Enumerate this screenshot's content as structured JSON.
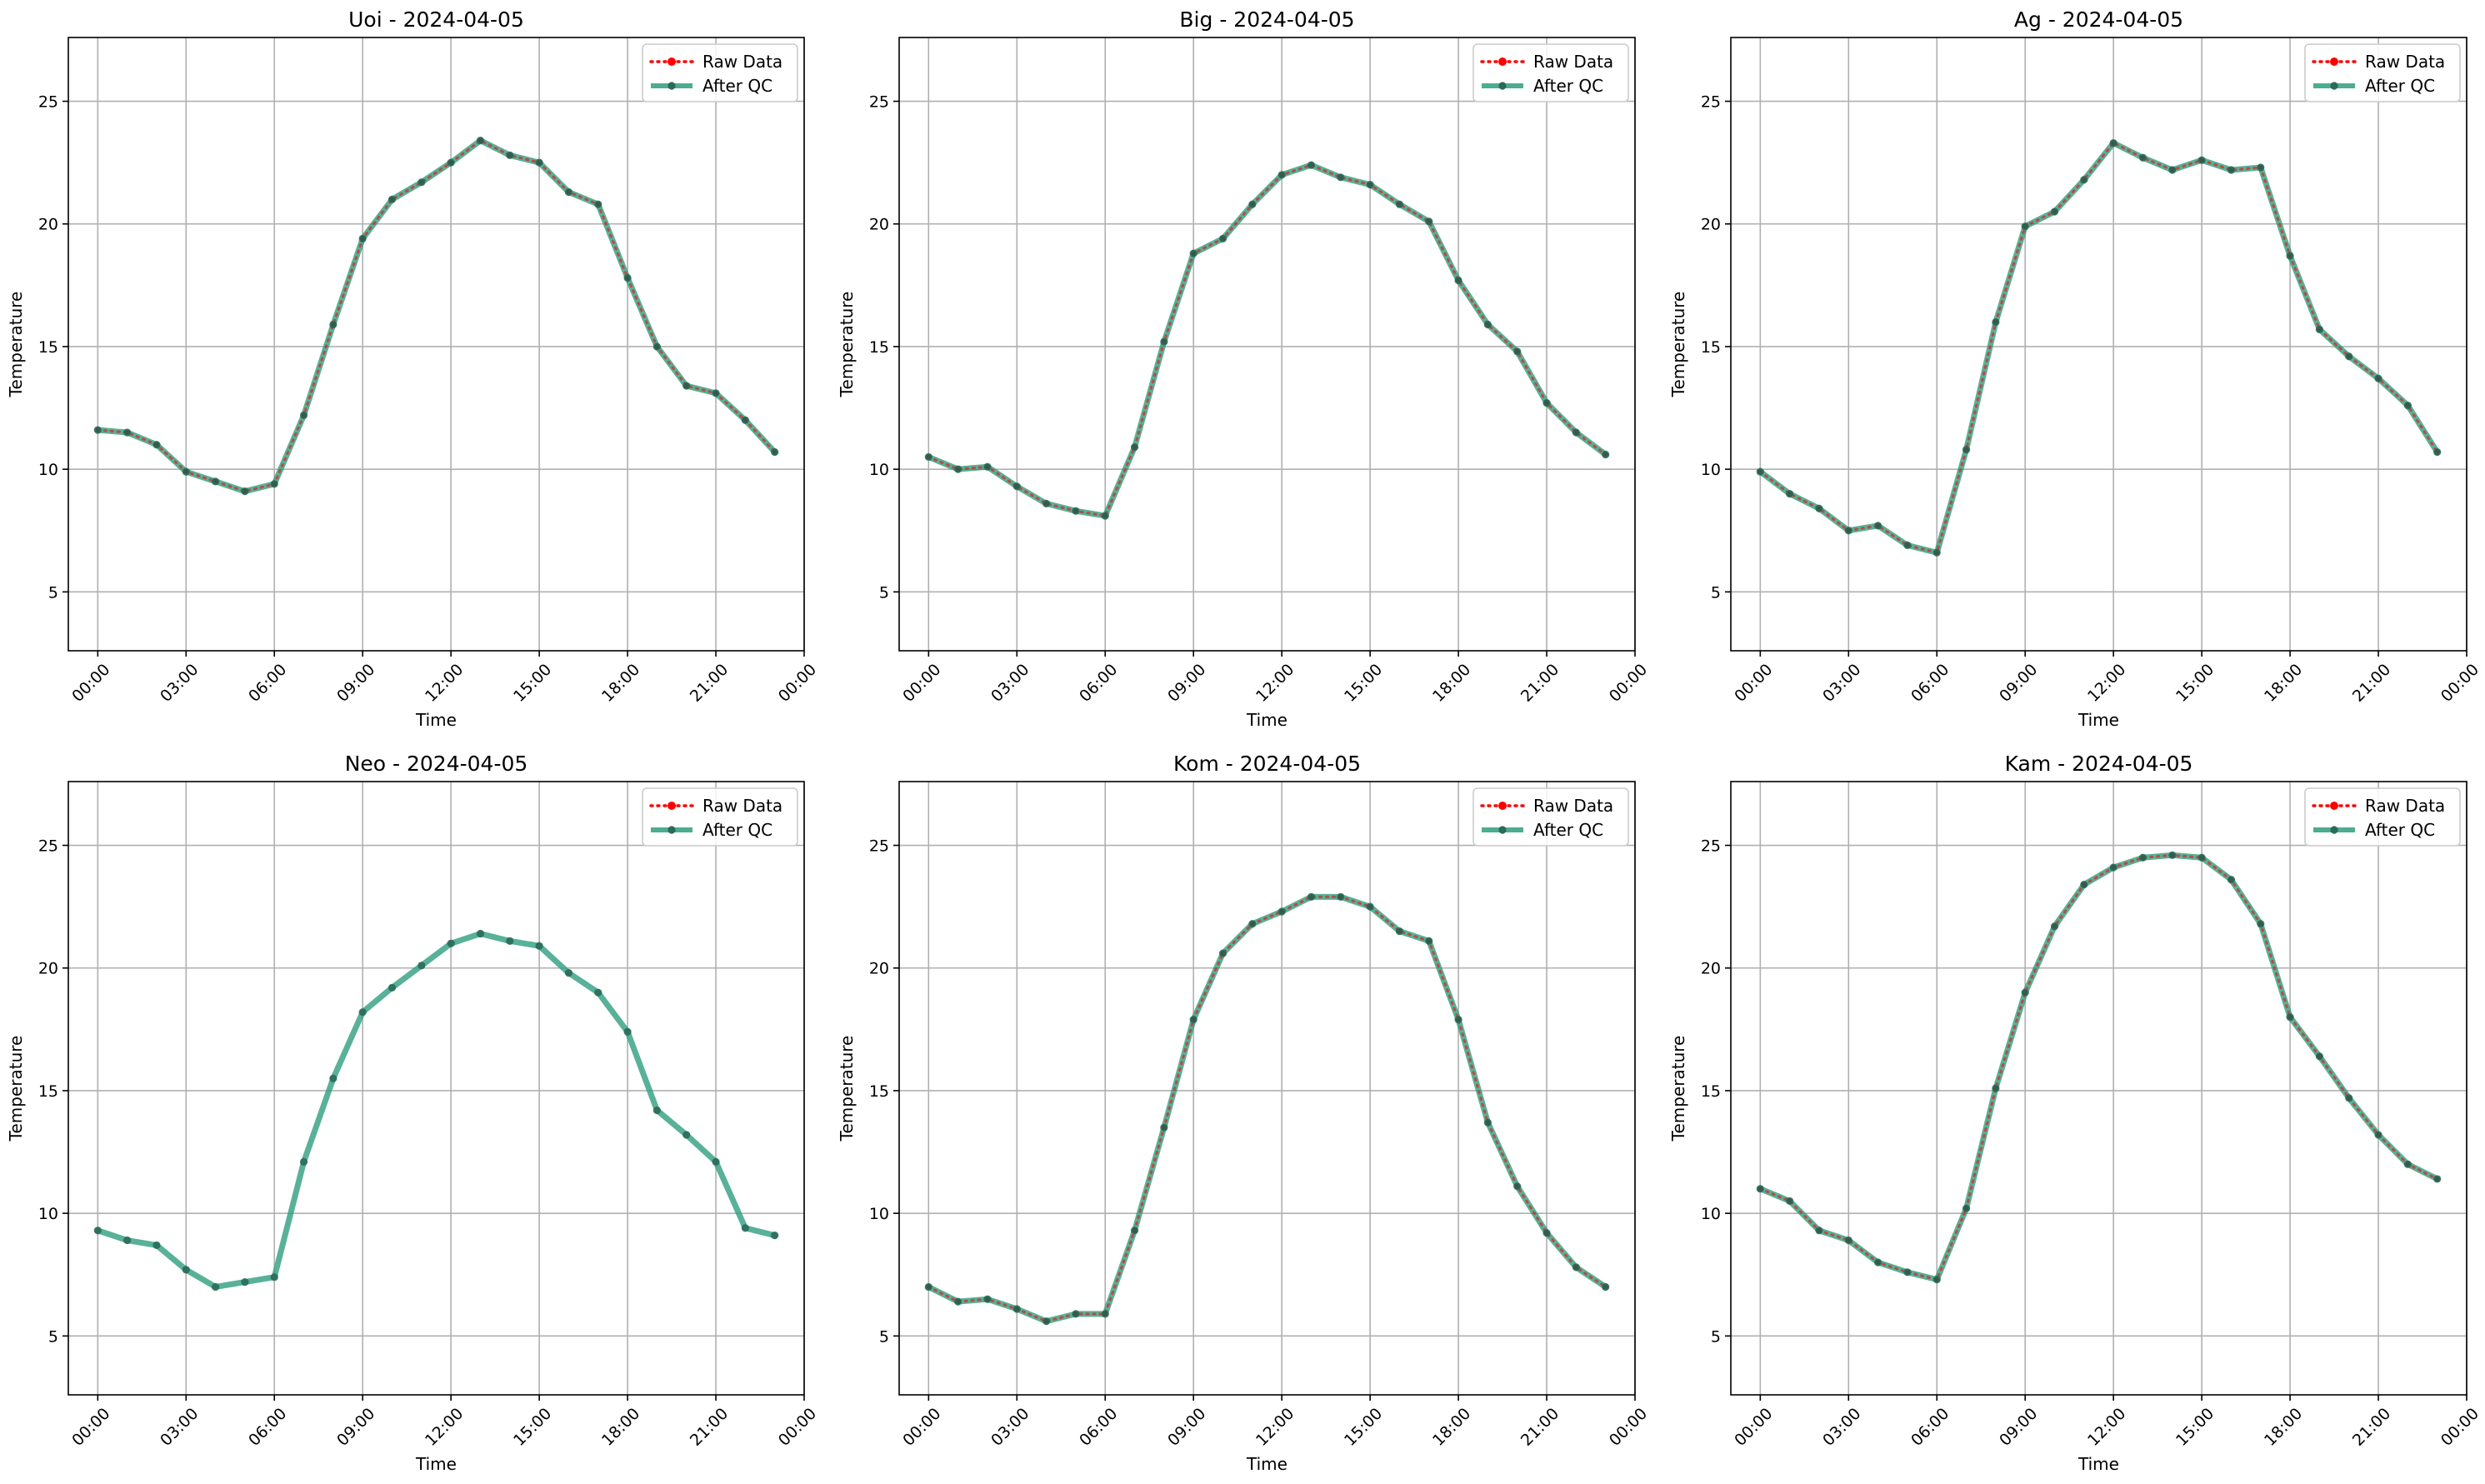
{
  "figure": {
    "legend_position": "upper-right",
    "grid": true,
    "colors": {
      "raw": "#ff0000",
      "qc": "#2e9e7e",
      "qc_marker": "#2a6a58"
    }
  },
  "chart_data": [
    {
      "type": "line",
      "title": "Uoi - 2024-04-05",
      "xlabel": "Time",
      "ylabel": "Temperature",
      "ylim": [
        2.6,
        27.6
      ],
      "yticks": [
        "5",
        "10",
        "15",
        "20",
        "25"
      ],
      "xlim_hours": [
        -1.0,
        24.0
      ],
      "xticks": [
        "00:00",
        "03:00",
        "06:00",
        "09:00",
        "12:00",
        "15:00",
        "18:00",
        "21:00",
        "00:00"
      ],
      "x_hours": [
        0,
        1,
        2,
        3,
        4,
        5,
        6,
        7,
        8,
        9,
        10,
        11,
        12,
        13,
        14,
        15,
        16,
        17,
        18,
        19,
        20,
        21,
        22,
        23
      ],
      "series": [
        {
          "name": "Raw Data",
          "values": [
            11.6,
            11.5,
            11.0,
            9.9,
            9.5,
            9.1,
            9.4,
            12.2,
            15.9,
            19.4,
            21.0,
            21.7,
            22.5,
            23.4,
            22.8,
            22.5,
            21.3,
            20.8,
            17.8,
            15.0,
            13.4,
            13.1,
            12.0,
            10.7
          ]
        },
        {
          "name": "After QC",
          "values": [
            11.6,
            11.5,
            11.0,
            9.9,
            9.5,
            9.1,
            9.4,
            12.2,
            15.9,
            19.4,
            21.0,
            21.7,
            22.5,
            23.4,
            22.8,
            22.5,
            21.3,
            20.8,
            17.8,
            15.0,
            13.4,
            13.1,
            12.0,
            10.7
          ]
        }
      ]
    },
    {
      "type": "line",
      "title": "Big - 2024-04-05",
      "xlabel": "Time",
      "ylabel": "Temperature",
      "ylim": [
        2.6,
        27.6
      ],
      "yticks": [
        "5",
        "10",
        "15",
        "20",
        "25"
      ],
      "xlim_hours": [
        -1.0,
        24.0
      ],
      "xticks": [
        "00:00",
        "03:00",
        "06:00",
        "09:00",
        "12:00",
        "15:00",
        "18:00",
        "21:00",
        "00:00"
      ],
      "x_hours": [
        0,
        1,
        2,
        3,
        4,
        5,
        6,
        7,
        8,
        9,
        10,
        11,
        12,
        13,
        14,
        15,
        16,
        17,
        18,
        19,
        20,
        21,
        22,
        23
      ],
      "series": [
        {
          "name": "Raw Data",
          "values": [
            10.5,
            10.0,
            10.1,
            9.3,
            8.6,
            8.3,
            8.1,
            10.9,
            15.2,
            18.8,
            19.4,
            20.8,
            22.0,
            22.4,
            21.9,
            21.6,
            20.8,
            20.1,
            17.7,
            15.9,
            14.8,
            12.7,
            11.5,
            10.6
          ]
        },
        {
          "name": "After QC",
          "values": [
            10.5,
            10.0,
            10.1,
            9.3,
            8.6,
            8.3,
            8.1,
            10.9,
            15.2,
            18.8,
            19.4,
            20.8,
            22.0,
            22.4,
            21.9,
            21.6,
            20.8,
            20.1,
            17.7,
            15.9,
            14.8,
            12.7,
            11.5,
            10.6
          ]
        }
      ]
    },
    {
      "type": "line",
      "title": "Ag - 2024-04-05",
      "xlabel": "Time",
      "ylabel": "Temperature",
      "ylim": [
        2.6,
        27.6
      ],
      "yticks": [
        "5",
        "10",
        "15",
        "20",
        "25"
      ],
      "xlim_hours": [
        -1.0,
        24.0
      ],
      "xticks": [
        "00:00",
        "03:00",
        "06:00",
        "09:00",
        "12:00",
        "15:00",
        "18:00",
        "21:00",
        "00:00"
      ],
      "x_hours": [
        0,
        1,
        2,
        3,
        4,
        5,
        6,
        7,
        8,
        9,
        10,
        11,
        12,
        13,
        14,
        15,
        16,
        17,
        18,
        19,
        20,
        21,
        22,
        23
      ],
      "series": [
        {
          "name": "Raw Data",
          "values": [
            9.9,
            9.0,
            8.4,
            7.5,
            7.7,
            6.9,
            6.6,
            10.8,
            16.0,
            19.9,
            20.5,
            21.8,
            23.3,
            22.7,
            22.2,
            22.6,
            22.2,
            22.3,
            18.7,
            15.7,
            14.6,
            13.7,
            12.6,
            10.7
          ]
        },
        {
          "name": "After QC",
          "values": [
            9.9,
            9.0,
            8.4,
            7.5,
            7.7,
            6.9,
            6.6,
            10.8,
            16.0,
            19.9,
            20.5,
            21.8,
            23.3,
            22.7,
            22.2,
            22.6,
            22.2,
            22.3,
            18.7,
            15.7,
            14.6,
            13.7,
            12.6,
            10.7
          ]
        }
      ]
    },
    {
      "type": "line",
      "title": "Neo - 2024-04-05",
      "xlabel": "Time",
      "ylabel": "Temperature",
      "ylim": [
        2.6,
        27.6
      ],
      "yticks": [
        "5",
        "10",
        "15",
        "20",
        "25"
      ],
      "xlim_hours": [
        -1.0,
        24.0
      ],
      "xticks": [
        "00:00",
        "03:00",
        "06:00",
        "09:00",
        "12:00",
        "15:00",
        "18:00",
        "21:00",
        "00:00"
      ],
      "x_hours": [
        0,
        1,
        2,
        3,
        4,
        5,
        6,
        7,
        8,
        9,
        10,
        11,
        12,
        13,
        14,
        15,
        16,
        17,
        18,
        19,
        20,
        21,
        22,
        23
      ],
      "series": [
        {
          "name": "Raw Data",
          "values": []
        },
        {
          "name": "After QC",
          "values": [
            9.3,
            8.9,
            8.7,
            7.7,
            7.0,
            7.2,
            7.4,
            12.1,
            15.5,
            18.2,
            19.2,
            20.1,
            21.0,
            21.4,
            21.1,
            20.9,
            19.8,
            19.0,
            17.4,
            14.2,
            13.2,
            12.1,
            9.4,
            9.1
          ]
        }
      ]
    },
    {
      "type": "line",
      "title": "Kom - 2024-04-05",
      "xlabel": "Time",
      "ylabel": "Temperature",
      "ylim": [
        2.6,
        27.6
      ],
      "yticks": [
        "5",
        "10",
        "15",
        "20",
        "25"
      ],
      "xlim_hours": [
        -1.0,
        24.0
      ],
      "xticks": [
        "00:00",
        "03:00",
        "06:00",
        "09:00",
        "12:00",
        "15:00",
        "18:00",
        "21:00",
        "00:00"
      ],
      "x_hours": [
        0,
        1,
        2,
        3,
        4,
        5,
        6,
        7,
        8,
        9,
        10,
        11,
        12,
        13,
        14,
        15,
        16,
        17,
        18,
        19,
        20,
        21,
        22,
        23
      ],
      "series": [
        {
          "name": "Raw Data",
          "values": [
            7.0,
            6.4,
            6.5,
            6.1,
            5.6,
            5.9,
            5.9,
            9.3,
            13.5,
            17.9,
            20.6,
            21.8,
            22.3,
            22.9,
            22.9,
            22.5,
            21.5,
            21.1,
            17.9,
            13.7,
            11.1,
            9.2,
            7.8,
            7.0
          ]
        },
        {
          "name": "After QC",
          "values": [
            7.0,
            6.4,
            6.5,
            6.1,
            5.6,
            5.9,
            5.9,
            9.3,
            13.5,
            17.9,
            20.6,
            21.8,
            22.3,
            22.9,
            22.9,
            22.5,
            21.5,
            21.1,
            17.9,
            13.7,
            11.1,
            9.2,
            7.8,
            7.0
          ]
        }
      ]
    },
    {
      "type": "line",
      "title": "Kam - 2024-04-05",
      "xlabel": "Time",
      "ylabel": "Temperature",
      "ylim": [
        2.6,
        27.6
      ],
      "yticks": [
        "5",
        "10",
        "15",
        "20",
        "25"
      ],
      "xlim_hours": [
        -1.0,
        24.0
      ],
      "xticks": [
        "00:00",
        "03:00",
        "06:00",
        "09:00",
        "12:00",
        "15:00",
        "18:00",
        "21:00",
        "00:00"
      ],
      "x_hours": [
        0,
        1,
        2,
        3,
        4,
        5,
        6,
        7,
        8,
        9,
        10,
        11,
        12,
        13,
        14,
        15,
        16,
        17,
        18,
        19,
        20,
        21,
        22,
        23
      ],
      "series": [
        {
          "name": "Raw Data",
          "values": [
            11.0,
            10.5,
            9.3,
            8.9,
            8.0,
            7.6,
            7.3,
            10.2,
            15.1,
            19.0,
            21.7,
            23.4,
            24.1,
            24.5,
            24.6,
            24.5,
            23.6,
            21.8,
            18.0,
            16.4,
            14.7,
            13.2,
            12.0,
            11.4
          ]
        },
        {
          "name": "After QC",
          "values": [
            11.0,
            10.5,
            9.3,
            8.9,
            8.0,
            7.6,
            7.3,
            10.2,
            15.1,
            19.0,
            21.7,
            23.4,
            24.1,
            24.5,
            24.6,
            24.5,
            23.6,
            21.8,
            18.0,
            16.4,
            14.7,
            13.2,
            12.0,
            11.4
          ]
        }
      ]
    }
  ]
}
